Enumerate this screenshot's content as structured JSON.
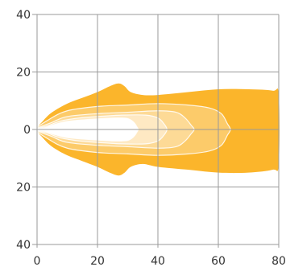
{
  "chart_data": {
    "type": "area",
    "title": "",
    "xlabel": "",
    "ylabel": "",
    "xlim": [
      0,
      80
    ],
    "ylim": [
      -40,
      40
    ],
    "grid": true,
    "x_ticks": [
      "0",
      "20",
      "40",
      "60",
      "80"
    ],
    "y_ticks": [
      "40",
      "20",
      "0",
      "20",
      "40"
    ],
    "y_tick_values": [
      40,
      20,
      0,
      -20,
      -40
    ],
    "contours": [
      {
        "color": "#FBB52B",
        "upper": [
          [
            0,
            0
          ],
          [
            2,
            3
          ],
          [
            5,
            6
          ],
          [
            10,
            9
          ],
          [
            15,
            11
          ],
          [
            20,
            13
          ],
          [
            24,
            15
          ],
          [
            27,
            16
          ],
          [
            29,
            15
          ],
          [
            31,
            13
          ],
          [
            35,
            12
          ],
          [
            40,
            12
          ],
          [
            50,
            13
          ],
          [
            60,
            14
          ],
          [
            70,
            14
          ],
          [
            78,
            13.5
          ],
          [
            80,
            12
          ]
        ],
        "lower": [
          [
            0,
            0
          ],
          [
            2,
            -3
          ],
          [
            5,
            -6
          ],
          [
            10,
            -9
          ],
          [
            15,
            -11
          ],
          [
            20,
            -13
          ],
          [
            24,
            -15
          ],
          [
            27,
            -16
          ],
          [
            29,
            -15
          ],
          [
            31,
            -13
          ],
          [
            35,
            -12
          ],
          [
            40,
            -13
          ],
          [
            50,
            -14
          ],
          [
            60,
            -15
          ],
          [
            70,
            -15
          ],
          [
            78,
            -14
          ],
          [
            80,
            -12
          ]
        ]
      },
      {
        "color": "#FCCB6A",
        "upper": [
          [
            0,
            0
          ],
          [
            4,
            3.5
          ],
          [
            10,
            6.5
          ],
          [
            20,
            8
          ],
          [
            30,
            8.5
          ],
          [
            40,
            9
          ],
          [
            50,
            8.5
          ],
          [
            57,
            7.5
          ],
          [
            61,
            5.5
          ],
          [
            63,
            2
          ],
          [
            64,
            0
          ]
        ],
        "lower": [
          [
            0,
            0
          ],
          [
            4,
            -3.5
          ],
          [
            10,
            -6.5
          ],
          [
            20,
            -8
          ],
          [
            30,
            -8.5
          ],
          [
            40,
            -9
          ],
          [
            50,
            -8.5
          ],
          [
            57,
            -7.5
          ],
          [
            61,
            -5.5
          ],
          [
            63,
            -2
          ],
          [
            64,
            0
          ]
        ]
      },
      {
        "color": "#FDDA96",
        "upper": [
          [
            0,
            0
          ],
          [
            5,
            2.5
          ],
          [
            10,
            4.5
          ],
          [
            20,
            5.5
          ],
          [
            30,
            6
          ],
          [
            40,
            6.5
          ],
          [
            46,
            6
          ],
          [
            49,
            4
          ],
          [
            51,
            1.5
          ],
          [
            52,
            0
          ]
        ],
        "lower": [
          [
            0,
            0
          ],
          [
            5,
            -2.5
          ],
          [
            10,
            -4.5
          ],
          [
            20,
            -5.5
          ],
          [
            30,
            -6
          ],
          [
            40,
            -6.5
          ],
          [
            46,
            -6
          ],
          [
            49,
            -4
          ],
          [
            51,
            -1.5
          ],
          [
            52,
            0
          ]
        ]
      },
      {
        "color": "#FEE9C3",
        "upper": [
          [
            0,
            0
          ],
          [
            4,
            1.5
          ],
          [
            8,
            3
          ],
          [
            14,
            4
          ],
          [
            20,
            4.5
          ],
          [
            28,
            5
          ],
          [
            36,
            5
          ],
          [
            40,
            4
          ],
          [
            42,
            2
          ],
          [
            43,
            0
          ]
        ],
        "lower": [
          [
            0,
            0
          ],
          [
            4,
            -1.5
          ],
          [
            8,
            -3
          ],
          [
            14,
            -4
          ],
          [
            20,
            -4.5
          ],
          [
            28,
            -5
          ],
          [
            36,
            -5
          ],
          [
            40,
            -4
          ],
          [
            42,
            -2
          ],
          [
            43,
            0
          ]
        ]
      },
      {
        "color": "#FFFFFF",
        "upper": [
          [
            0,
            0
          ],
          [
            3,
            0.8
          ],
          [
            6,
            1.8
          ],
          [
            10,
            2.8
          ],
          [
            16,
            3.4
          ],
          [
            22,
            3.8
          ],
          [
            26,
            4
          ],
          [
            30,
            3.8
          ],
          [
            32,
            2.5
          ],
          [
            33,
            1
          ],
          [
            33.5,
            0
          ]
        ],
        "lower": [
          [
            0,
            0
          ],
          [
            3,
            -0.8
          ],
          [
            6,
            -1.8
          ],
          [
            10,
            -2.8
          ],
          [
            16,
            -3.4
          ],
          [
            22,
            -3.8
          ],
          [
            26,
            -4
          ],
          [
            30,
            -3.8
          ],
          [
            32,
            -2.5
          ],
          [
            33,
            -1
          ],
          [
            33.5,
            0
          ]
        ]
      }
    ]
  }
}
